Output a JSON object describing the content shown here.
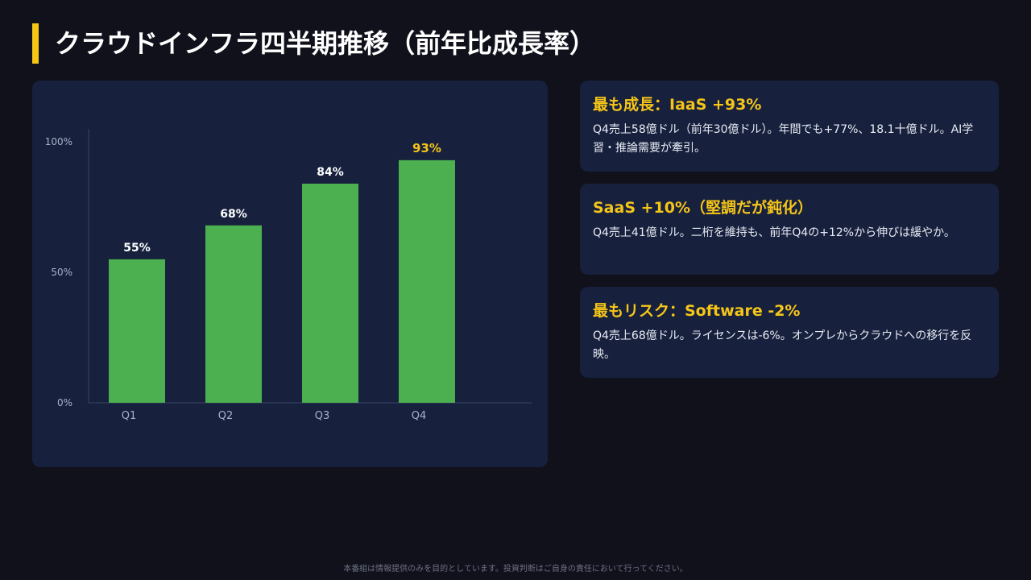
{
  "header": {
    "title": "クラウドインフラ四半期推移（前年比成長率）"
  },
  "chart_data": {
    "type": "bar",
    "categories": [
      "Q1",
      "Q2",
      "Q3",
      "Q4"
    ],
    "values": [
      55,
      68,
      84,
      93
    ],
    "value_labels": [
      "55%",
      "68%",
      "84%",
      "93%"
    ],
    "y_ticks": [
      {
        "value": 0,
        "label": "0%"
      },
      {
        "value": 50,
        "label": "50%"
      },
      {
        "value": 100,
        "label": "100%"
      }
    ],
    "ylim": [
      0,
      105
    ],
    "grid": false,
    "highlight_index": 3,
    "colors": {
      "bar": "#4caf50",
      "label": "#ffffff",
      "highlight_label": "#f5c518",
      "axis": "#3a4566",
      "tick": "#aab2c8"
    }
  },
  "cards": [
    {
      "title": "最も成長：IaaS +93%",
      "body": "Q4売上58億ドル（前年30億ドル）。年間でも+77%、18.1十億ドル。AI学習・推論需要が牽引。"
    },
    {
      "title": "SaaS +10%（堅調だが鈍化）",
      "body": "Q4売上41億ドル。二桁を維持も、前年Q4の+12%から伸びは緩やか。"
    },
    {
      "title": "最もリスク：Software -2%",
      "body": "Q4売上68億ドル。ライセンスは-6%。オンプレからクラウドへの移行を反映。"
    }
  ],
  "footer": {
    "disclaimer": "本番組は情報提供のみを目的としています。投資判断はご自身の責任において行ってください。"
  }
}
